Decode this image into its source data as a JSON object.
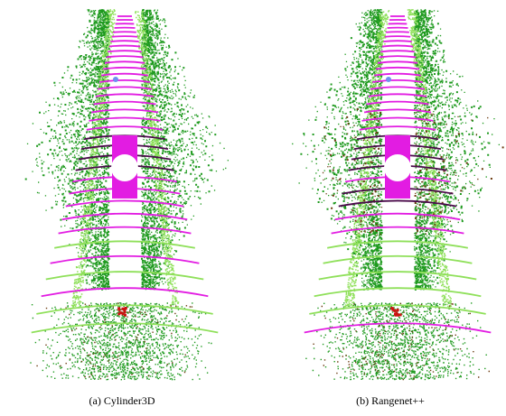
{
  "figure": {
    "captions": [
      "(a) Cylinder3D",
      "(b) Rangenet++"
    ]
  }
}
